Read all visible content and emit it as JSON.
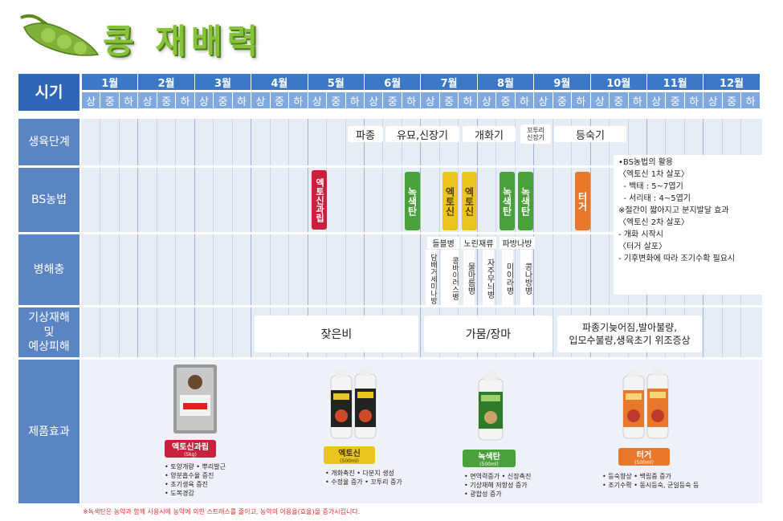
{
  "title": "콩 재배력",
  "header": {
    "label": "시기",
    "months": [
      "1월",
      "2월",
      "3월",
      "4월",
      "5월",
      "6월",
      "7월",
      "8월",
      "9월",
      "10월",
      "11월",
      "12월"
    ],
    "subdivisions": [
      "상",
      "중",
      "하"
    ]
  },
  "rows": {
    "growth": "생육단계",
    "bs": "BS농법",
    "pest": "병해충",
    "weather": [
      "기상재해",
      "및",
      "예상피해"
    ],
    "product": "제품효과"
  },
  "growth_stages": {
    "sowing": "파종",
    "seedling": "유묘,신장기",
    "flowering": "개화기",
    "pod": "꼬투리\n신장기",
    "ripening": "등숙기"
  },
  "bs_items": {
    "ekto_granule": "엑토신과립",
    "green1": "녹색탄",
    "ekto1": "엑토신",
    "ekto2": "엑토신",
    "green2": "녹색탄",
    "green3": "녹색탄",
    "turgor": "터거"
  },
  "bs_note": [
    "•BS농법의 활용",
    "〈엑토신 1차 살포〉",
    "  - 백태 : 5~7엽기",
    "  - 서리태 : 4~5엽기",
    "※절간이 짧아지고 분지발달 효과",
    "〈엑토신 2차 살포〉",
    "- 개화 시작시",
    "〈터거 살포〉",
    "- 기후변화에 따라 조기수확 필요시"
  ],
  "pest": {
    "cap1": "들블병",
    "cap2": "노린재류",
    "cap3": "파방나방",
    "col1": "담배거세미나방",
    "col2": "콩바이러스병",
    "col2b": "모자이크병",
    "col3": "물마름병",
    "col4": "자주무늬병",
    "col5": "미이라병",
    "col6": "콩나방병"
  },
  "weather": {
    "rain": "잦은비",
    "drought": "가뭄/장마",
    "late": "파종기늦어짐,발아불량,\n입모수불량,생육초기 위조증상"
  },
  "products": [
    {
      "name": "엑토신과립",
      "size": "(5kg)",
      "color": "#c9213d",
      "bullets": [
        "• 토양개량  • 뿌리발근",
        "• 양분흡수율 증진",
        "• 초기생육 증진",
        "• 도복경감"
      ]
    },
    {
      "name": "엑토신",
      "size": "(500ml)",
      "color": "#e8c61f",
      "bullets": [
        "• 개화촉진 • 다분지 생성",
        "• 수정율 증가 • 꼬투리 증가"
      ]
    },
    {
      "name": "녹색탄",
      "size": "(500ml)",
      "color": "#4aa03a",
      "bullets": [
        "• 면역력증가 • 신장촉진",
        "• 기상재해 저항성 증가",
        "• 광합성 증가"
      ]
    },
    {
      "name": "터거",
      "size": "(500ml)",
      "color": "#e8782a",
      "bullets": [
        "• 등숙향상 • 백립중 증가",
        "• 조기수확 • 동시등숙, 균일등숙 등"
      ]
    }
  ],
  "footnote": "※녹색탄은 농약과 함께 사용시에 농약에 의한 스트레스를 줄이고, 농약의 이용율(효율)을 증가시킵니다.",
  "colors": {
    "header_month": "#3b78c6",
    "header_sub": "#7fa9df",
    "row_label": "#5a84c4",
    "row_bg": "#e7edf5",
    "ekto_granule": "#c9213d",
    "green": "#4aa03a",
    "ekto": "#e8c61f",
    "turgor": "#e8782a"
  }
}
